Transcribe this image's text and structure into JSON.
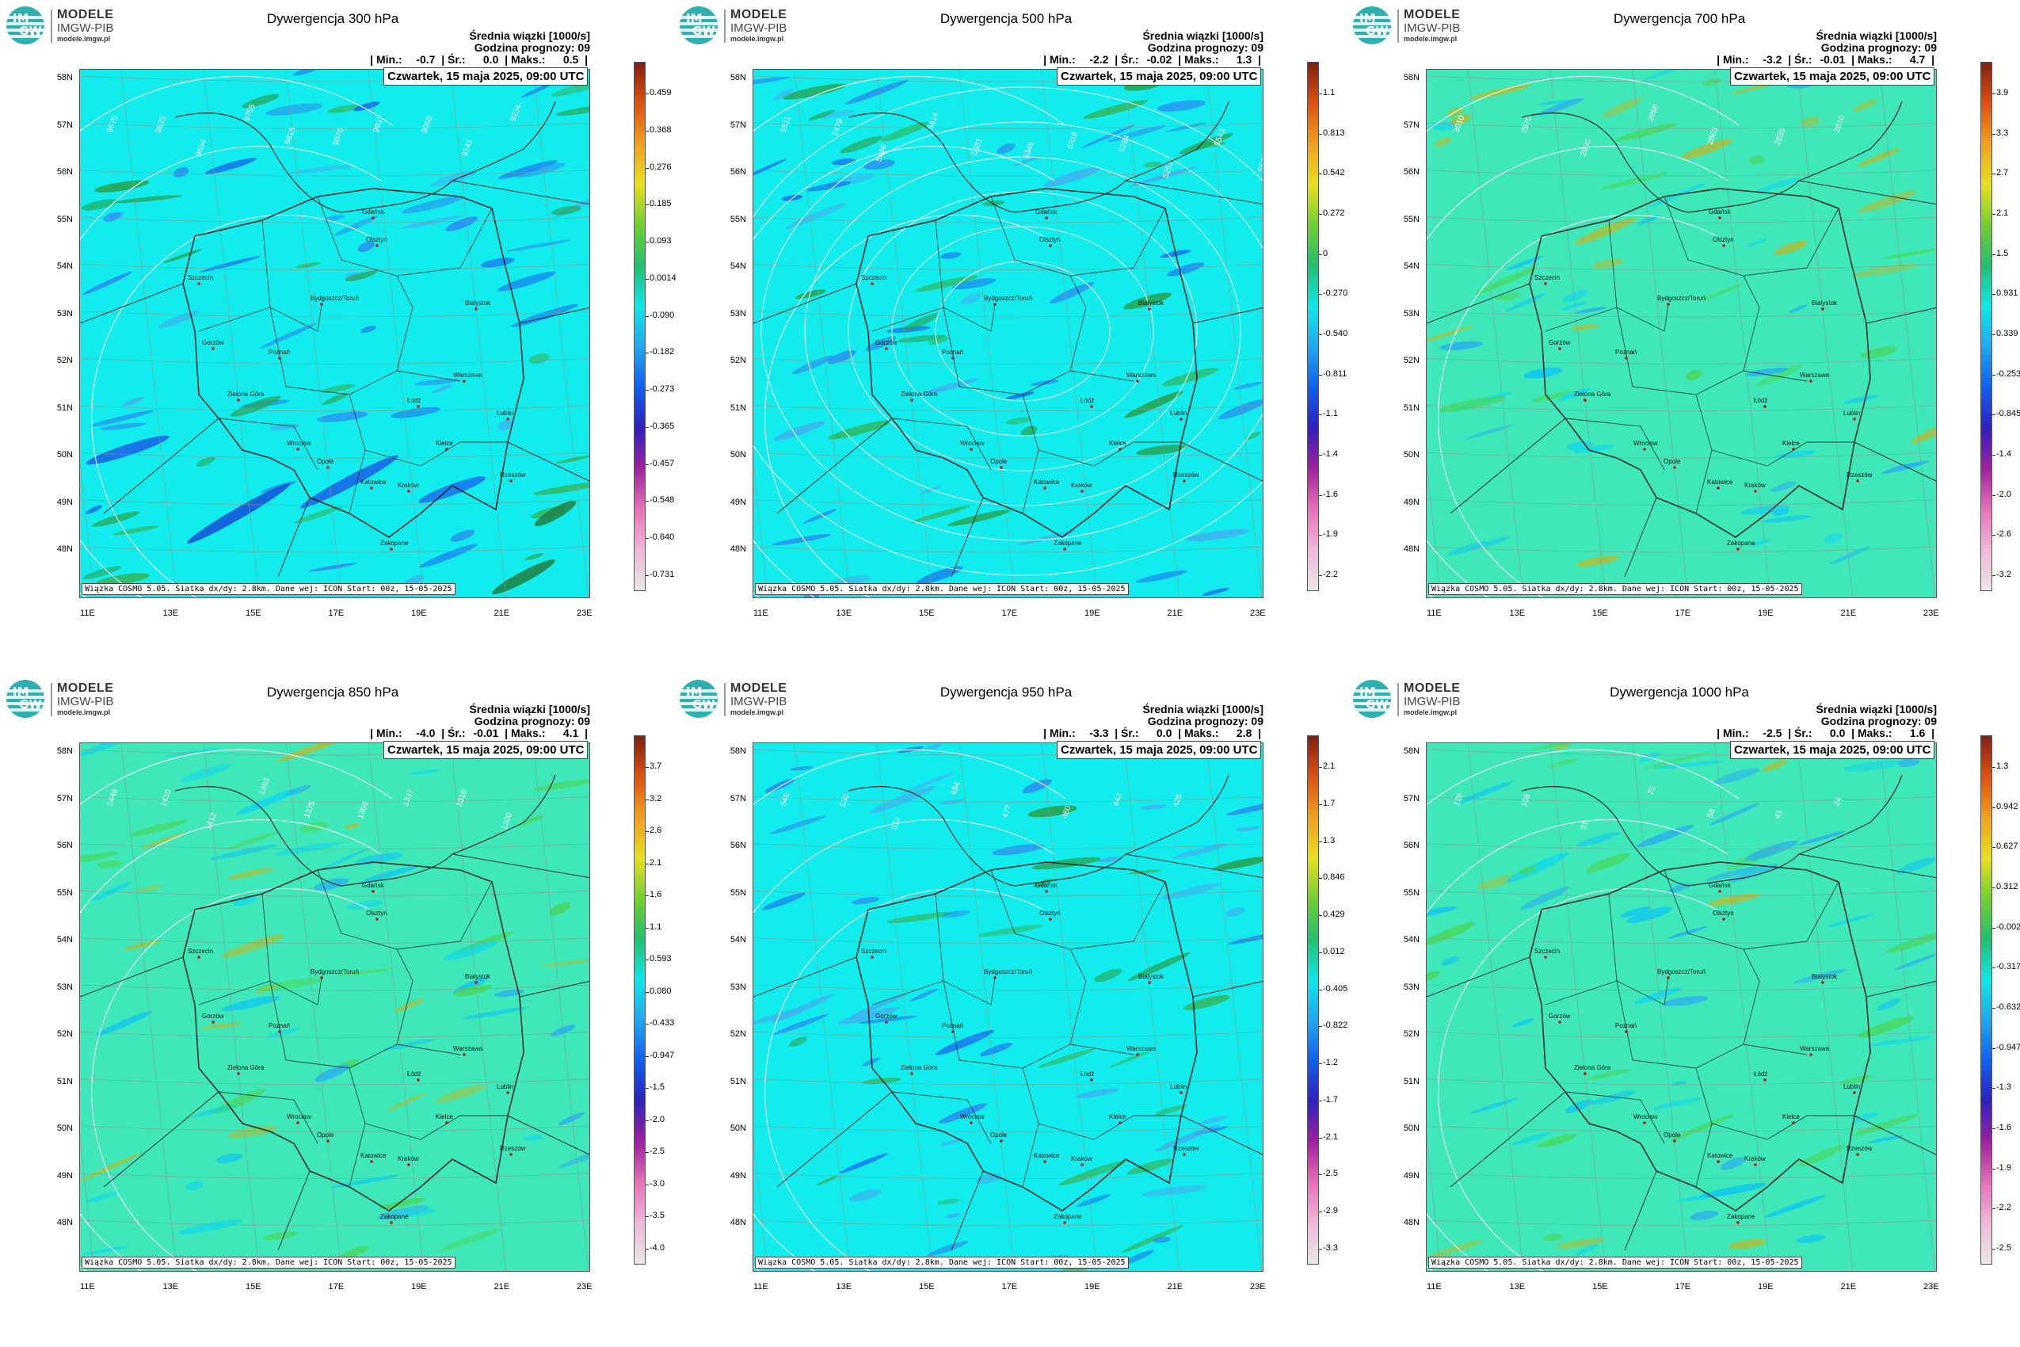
{
  "logo": {
    "line1": "MODELE",
    "line2": "IMGW-PIB",
    "line3": "modele.imgw.pl",
    "disc_im": "IM",
    "disc_gw": "GW"
  },
  "colors": {
    "map_bg_cyan": "#12ecec",
    "map_bg_green": "#3ee8b8",
    "contour": "#ffffff",
    "border": "#1a2a2a"
  },
  "common": {
    "avg_label": "Średnia wiązki [1000/s]",
    "forecast_hour": "Godzina prognozy: 09",
    "date": "Czwartek, 15 maja 2025, 09:00 UTC",
    "footer": "Wiązka COSMO 5.05. Siatka dx/dy: 2.8km. Dane wej: ICON Start: 00z, 15-05-2025",
    "lat_labels": [
      "58N",
      "57N",
      "56N",
      "55N",
      "54N",
      "53N",
      "52N",
      "51N",
      "50N",
      "49N",
      "48N"
    ],
    "lon_labels": [
      "11E",
      "13E",
      "15E",
      "17E",
      "19E",
      "21E",
      "23E"
    ],
    "cities": [
      "Gdańsk",
      "Olsztyn",
      "Szczecin",
      "Bydgoszcz/Toruń",
      "Białystok",
      "Gorzów",
      "Poznań",
      "Warszawa",
      "Zielona Góra",
      "Łódź",
      "Lublin",
      "Wrocław",
      "Kielce",
      "Opole",
      "Rzeszów",
      "Katowice",
      "Kraków",
      "Zakopane"
    ]
  },
  "panels": [
    {
      "title": "Dywergencja 300 hPa",
      "min": "-0.7",
      "mean": "0.0",
      "max": "0.5",
      "bg": "cyan",
      "cbar_ticks": [
        "0.459",
        "0.368",
        "0.276",
        "0.185",
        "0.093",
        "0.0014",
        "-0.090",
        "-0.182",
        "-0.273",
        "-0.365",
        "-0.457",
        "-0.548",
        "-0.640",
        "-0.731"
      ],
      "contour_labels": [
        "9575",
        "9633",
        "9694",
        "9755",
        "9816",
        "9876",
        "9937",
        "9058",
        "9141",
        "9234"
      ]
    },
    {
      "title": "Dywergencja 500 hPa",
      "min": "-2.2",
      "mean": "-0.02",
      "max": "1.3",
      "bg": "cyan",
      "cbar_ticks": [
        "1.1",
        "0.813",
        "0.542",
        "0.272",
        "0",
        "-0.270",
        "-0.540",
        "-0.811",
        "-1.1",
        "-1.4",
        "-1.6",
        "-1.9",
        "-2.2"
      ],
      "contour_labels": [
        "5511",
        "5479",
        "5446",
        "5414",
        "5381",
        "5349",
        "5316",
        "5284",
        "5251",
        "5543",
        "5575"
      ]
    },
    {
      "title": "Dywergencja 700 hPa",
      "min": "-3.2",
      "mean": "-0.01",
      "max": "4.7",
      "bg": "green",
      "cbar_ticks": [
        "3.9",
        "3.3",
        "2.7",
        "2.1",
        "1.5",
        "0.931",
        "0.339",
        "-0.253",
        "-0.845",
        "-1.4",
        "-2.0",
        "-2.6",
        "-3.2"
      ],
      "contour_labels": [
        "3010",
        "2970",
        "2930",
        "2898",
        "2865",
        "2835",
        "2810"
      ]
    },
    {
      "title": "Dywergencja 850 hPa",
      "min": "-4.0",
      "mean": "-0.01",
      "max": "4.1",
      "bg": "green",
      "cbar_ticks": [
        "3.7",
        "3.2",
        "2.6",
        "2.1",
        "1.6",
        "1.1",
        "0.593",
        "0.080",
        "-0.433",
        "-0.947",
        "-1.5",
        "-2.0",
        "-2.5",
        "-3.0",
        "-3.5",
        "-4.0"
      ],
      "contour_labels": [
        "1449",
        "1430",
        "1412",
        "1393",
        "1375",
        "1356",
        "1337",
        "1319",
        "1300"
      ]
    },
    {
      "title": "Dywergencja 950 hPa",
      "min": "-3.3",
      "mean": "0.0",
      "max": "2.8",
      "bg": "cyan",
      "cbar_ticks": [
        "2.1",
        "1.7",
        "1.3",
        "0.846",
        "0.429",
        "0.012",
        "-0.405",
        "-0.822",
        "-1.2",
        "-1.7",
        "-2.1",
        "-2.5",
        "-2.9",
        "-3.3"
      ],
      "contour_labels": [
        "548",
        "530",
        "512",
        "494",
        "477",
        "460",
        "443",
        "426"
      ]
    },
    {
      "title": "Dywergencja 1000 hPa",
      "min": "-2.5",
      "mean": "0.0",
      "max": "1.6",
      "bg": "green",
      "cbar_ticks": [
        "1.3",
        "0.942",
        "0.627",
        "0.312",
        "-0.002",
        "-0.317",
        "-0.632",
        "-0.947",
        "-1.3",
        "-1.6",
        "-1.9",
        "-2.2",
        "-2.5"
      ],
      "contour_labels": [
        "126",
        "108",
        "91",
        "75",
        "58",
        "41",
        "24"
      ]
    }
  ]
}
